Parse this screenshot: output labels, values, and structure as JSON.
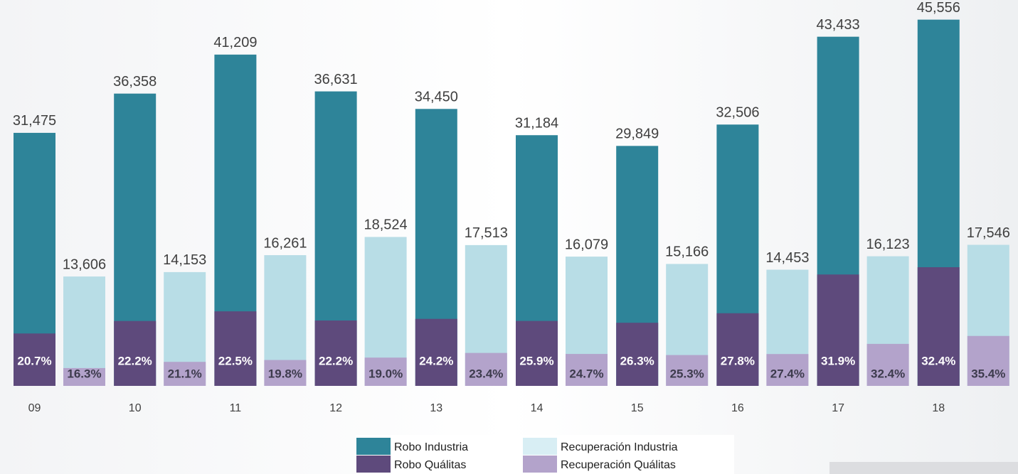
{
  "chart_data": {
    "type": "bar",
    "categories": [
      "09",
      "10",
      "11",
      "12",
      "13",
      "14",
      "15",
      "16",
      "17",
      "18"
    ],
    "ylim": [
      0,
      48000
    ],
    "series": [
      {
        "name": "Robo Industria",
        "color": "#2e8499",
        "values": [
          31475,
          36358,
          41209,
          36631,
          34450,
          31184,
          29849,
          32506,
          43433,
          45556
        ],
        "value_labels": [
          "31,475",
          "36,358",
          "41,209",
          "36,631",
          "34,450",
          "31,184",
          "29,849",
          "32,506",
          "43,433",
          "45,556"
        ]
      },
      {
        "name": "Recuperación Industria",
        "color": "#b8dde6",
        "values": [
          13606,
          14153,
          16261,
          18524,
          17513,
          16079,
          15166,
          14453,
          16123,
          17546
        ],
        "value_labels": [
          "13,606",
          "14,153",
          "16,261",
          "18,524",
          "17,513",
          "16,079",
          "15,166",
          "14,453",
          "16,123",
          "17,546"
        ]
      },
      {
        "name": "Robo Quálitas",
        "color": "#5e4a7c",
        "values": [
          20.7,
          22.2,
          22.5,
          22.2,
          24.2,
          25.9,
          26.3,
          27.8,
          31.9,
          32.4
        ],
        "value_labels": [
          "20.7%",
          "22.2%",
          "22.5%",
          "22.2%",
          "24.2%",
          "25.9%",
          "26.3%",
          "27.8%",
          "31.9%",
          "32.4%"
        ]
      },
      {
        "name": "Recuperación Quálitas",
        "color": "#b3a3cb",
        "values": [
          16.3,
          21.1,
          19.8,
          19.0,
          23.4,
          24.7,
          25.3,
          27.4,
          32.4,
          35.4
        ],
        "value_labels": [
          "16.3%",
          "21.1%",
          "19.8%",
          "19.0%",
          "23.4%",
          "24.7%",
          "25.3%",
          "27.4%",
          "32.4%",
          "35.4%"
        ]
      }
    ]
  }
}
